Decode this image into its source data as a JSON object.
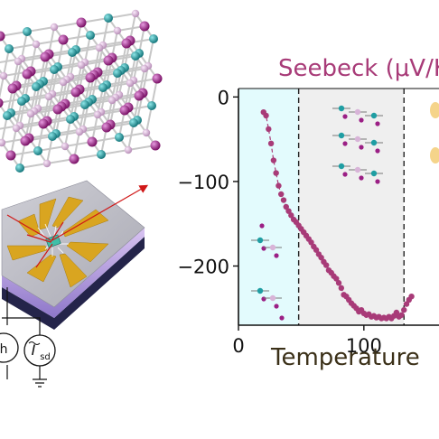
{
  "chart_data": {
    "type": "scatter",
    "title": "Seebeck (μV/K)",
    "xlabel": "Temperature",
    "ylabel": "",
    "xlim": [
      0,
      170
    ],
    "ylim": [
      -270,
      10
    ],
    "x_ticks": [
      0,
      100
    ],
    "y_ticks": [
      0,
      -100,
      -200
    ],
    "x_tick_labels": [
      "0",
      "100"
    ],
    "y_tick_labels": [
      "0",
      "−100",
      "−200"
    ],
    "phase_boundaries": [
      48,
      132
    ],
    "regions": [
      {
        "x_from": 0,
        "x_to": 48,
        "color": "#e3fbfd"
      },
      {
        "x_from": 48,
        "x_to": 132,
        "color": "#efefef"
      },
      {
        "x_from": 132,
        "x_to": 170,
        "color": "#ffffff"
      }
    ],
    "series": [
      {
        "color": "#a83b78",
        "x": [
          20,
          22,
          24,
          26,
          28,
          30,
          32,
          34,
          36,
          38,
          40,
          42,
          44,
          46,
          48,
          50,
          52,
          54,
          56,
          58,
          60,
          62,
          64,
          66,
          68,
          70,
          72,
          74,
          76,
          78,
          80,
          82,
          84,
          86,
          88,
          90,
          92,
          94,
          96,
          98,
          100,
          102,
          104,
          106,
          108,
          110,
          112,
          114,
          116,
          118,
          120,
          122,
          124,
          126,
          128,
          130,
          132,
          134,
          136,
          138
        ],
        "y": [
          -18,
          -22,
          -38,
          -55,
          -75,
          -90,
          -105,
          -115,
          -122,
          -130,
          -135,
          -140,
          -145,
          -148,
          -152,
          -156,
          -160,
          -164,
          -168,
          -172,
          -177,
          -181,
          -186,
          -190,
          -195,
          -199,
          -205,
          -208,
          -212,
          -215,
          -220,
          -226,
          -234,
          -236,
          -240,
          -244,
          -247,
          -250,
          -254,
          -252,
          -256,
          -258,
          -257,
          -260,
          -259,
          -261,
          -260,
          -262,
          -261,
          -262,
          -260,
          -262,
          -259,
          -255,
          -260,
          -258,
          -252,
          -245,
          -240,
          -236
        ]
      }
    ],
    "legend": "none"
  },
  "schematic": {
    "current_source_label": "I",
    "current_source_subscript": "sd",
    "left_source_label": "h"
  },
  "colors": {
    "data": "#a83b78",
    "title": "#a83b78",
    "axis_label": "#3b3018",
    "region_1": "#e3fbfd",
    "region_2": "#efefef",
    "gold": "#d9a520",
    "substrate": "#2a2a4a",
    "atom_magenta": "#9b1f85",
    "atom_cyan": "#1f9ea3",
    "atom_pink": "#d8b4d8"
  }
}
